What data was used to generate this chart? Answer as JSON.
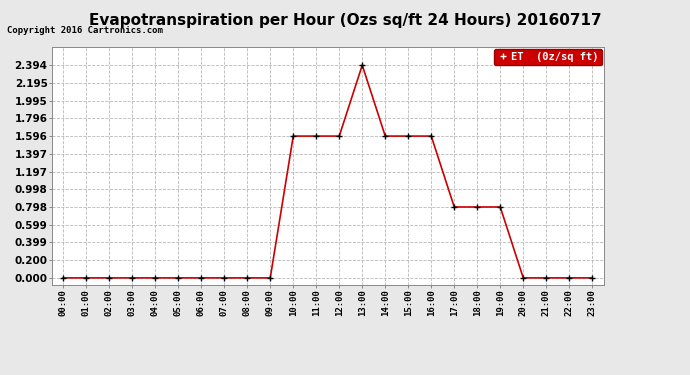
{
  "title": "Evapotranspiration per Hour (Ozs sq/ft 24 Hours) 20160717",
  "copyright": "Copyright 2016 Cartronics.com",
  "legend_label": "ET  (0z/sq ft)",
  "hours": [
    "00:00",
    "01:00",
    "02:00",
    "03:00",
    "04:00",
    "05:00",
    "06:00",
    "07:00",
    "08:00",
    "09:00",
    "10:00",
    "11:00",
    "12:00",
    "13:00",
    "14:00",
    "15:00",
    "16:00",
    "17:00",
    "18:00",
    "19:00",
    "20:00",
    "21:00",
    "22:00",
    "23:00"
  ],
  "values": [
    0.0,
    0.0,
    0.0,
    0.0,
    0.0,
    0.0,
    0.0,
    0.0,
    0.0,
    0.0,
    1.596,
    1.596,
    1.596,
    2.394,
    1.596,
    1.596,
    1.596,
    0.798,
    0.798,
    0.798,
    0.0,
    0.0,
    0.0,
    0.0
  ],
  "line_color": "#cc0000",
  "marker_color": "#000000",
  "legend_bg": "#cc0000",
  "legend_text_color": "#ffffff",
  "yticks": [
    0.0,
    0.2,
    0.399,
    0.599,
    0.798,
    0.998,
    1.197,
    1.397,
    1.596,
    1.796,
    1.995,
    2.195,
    2.394
  ],
  "ylim": [
    -0.08,
    2.6
  ],
  "bg_color": "#e8e8e8",
  "plot_bg_color": "#ffffff",
  "grid_color": "#b0b0b0",
  "title_fontsize": 11,
  "copyright_fontsize": 6.5,
  "tick_fontsize": 6.5,
  "ytick_fontsize": 7.5,
  "legend_fontsize": 7.5
}
